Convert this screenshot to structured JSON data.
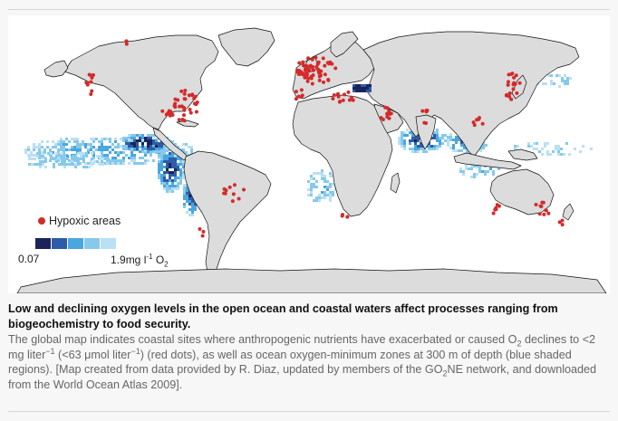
{
  "map": {
    "legend": {
      "hypoxic_label": "Hypoxic areas",
      "scale_min": "0.07",
      "scale_max_number": "1.9",
      "scale_max_unit": "mg l",
      "scale_max_exponent": "-1",
      "scale_max_species": "O",
      "scale_max_subscript": "2",
      "swatch_colors": [
        "#1a2459",
        "#2d5ca8",
        "#4aa6df",
        "#86c9ec",
        "#b9e0f4"
      ]
    },
    "colors": {
      "land": "#dcdcdc",
      "coast": "#111111",
      "ocean": "#ffffff",
      "hypoxic_dot": "#d42a2a"
    }
  },
  "caption": {
    "title": "Low and declining oxygen levels in the open ocean and coastal waters affect processes ranging from biogeochemistry to food security.",
    "body_parts": [
      "The global map indicates coastal sites where anthropogenic nutrients have exacerbated or caused O",
      "2",
      " declines to <2 mg liter",
      "−1",
      " (<63 μmol liter",
      "−1",
      ") (red dots), as well as ocean oxygen-minimum zones at 300 m of depth (blue shaded regions). [Map created from data provided by R. Diaz, updated by members of the GO",
      "2",
      "NE network, and downloaded from the World Ocean Atlas 2009]."
    ]
  }
}
